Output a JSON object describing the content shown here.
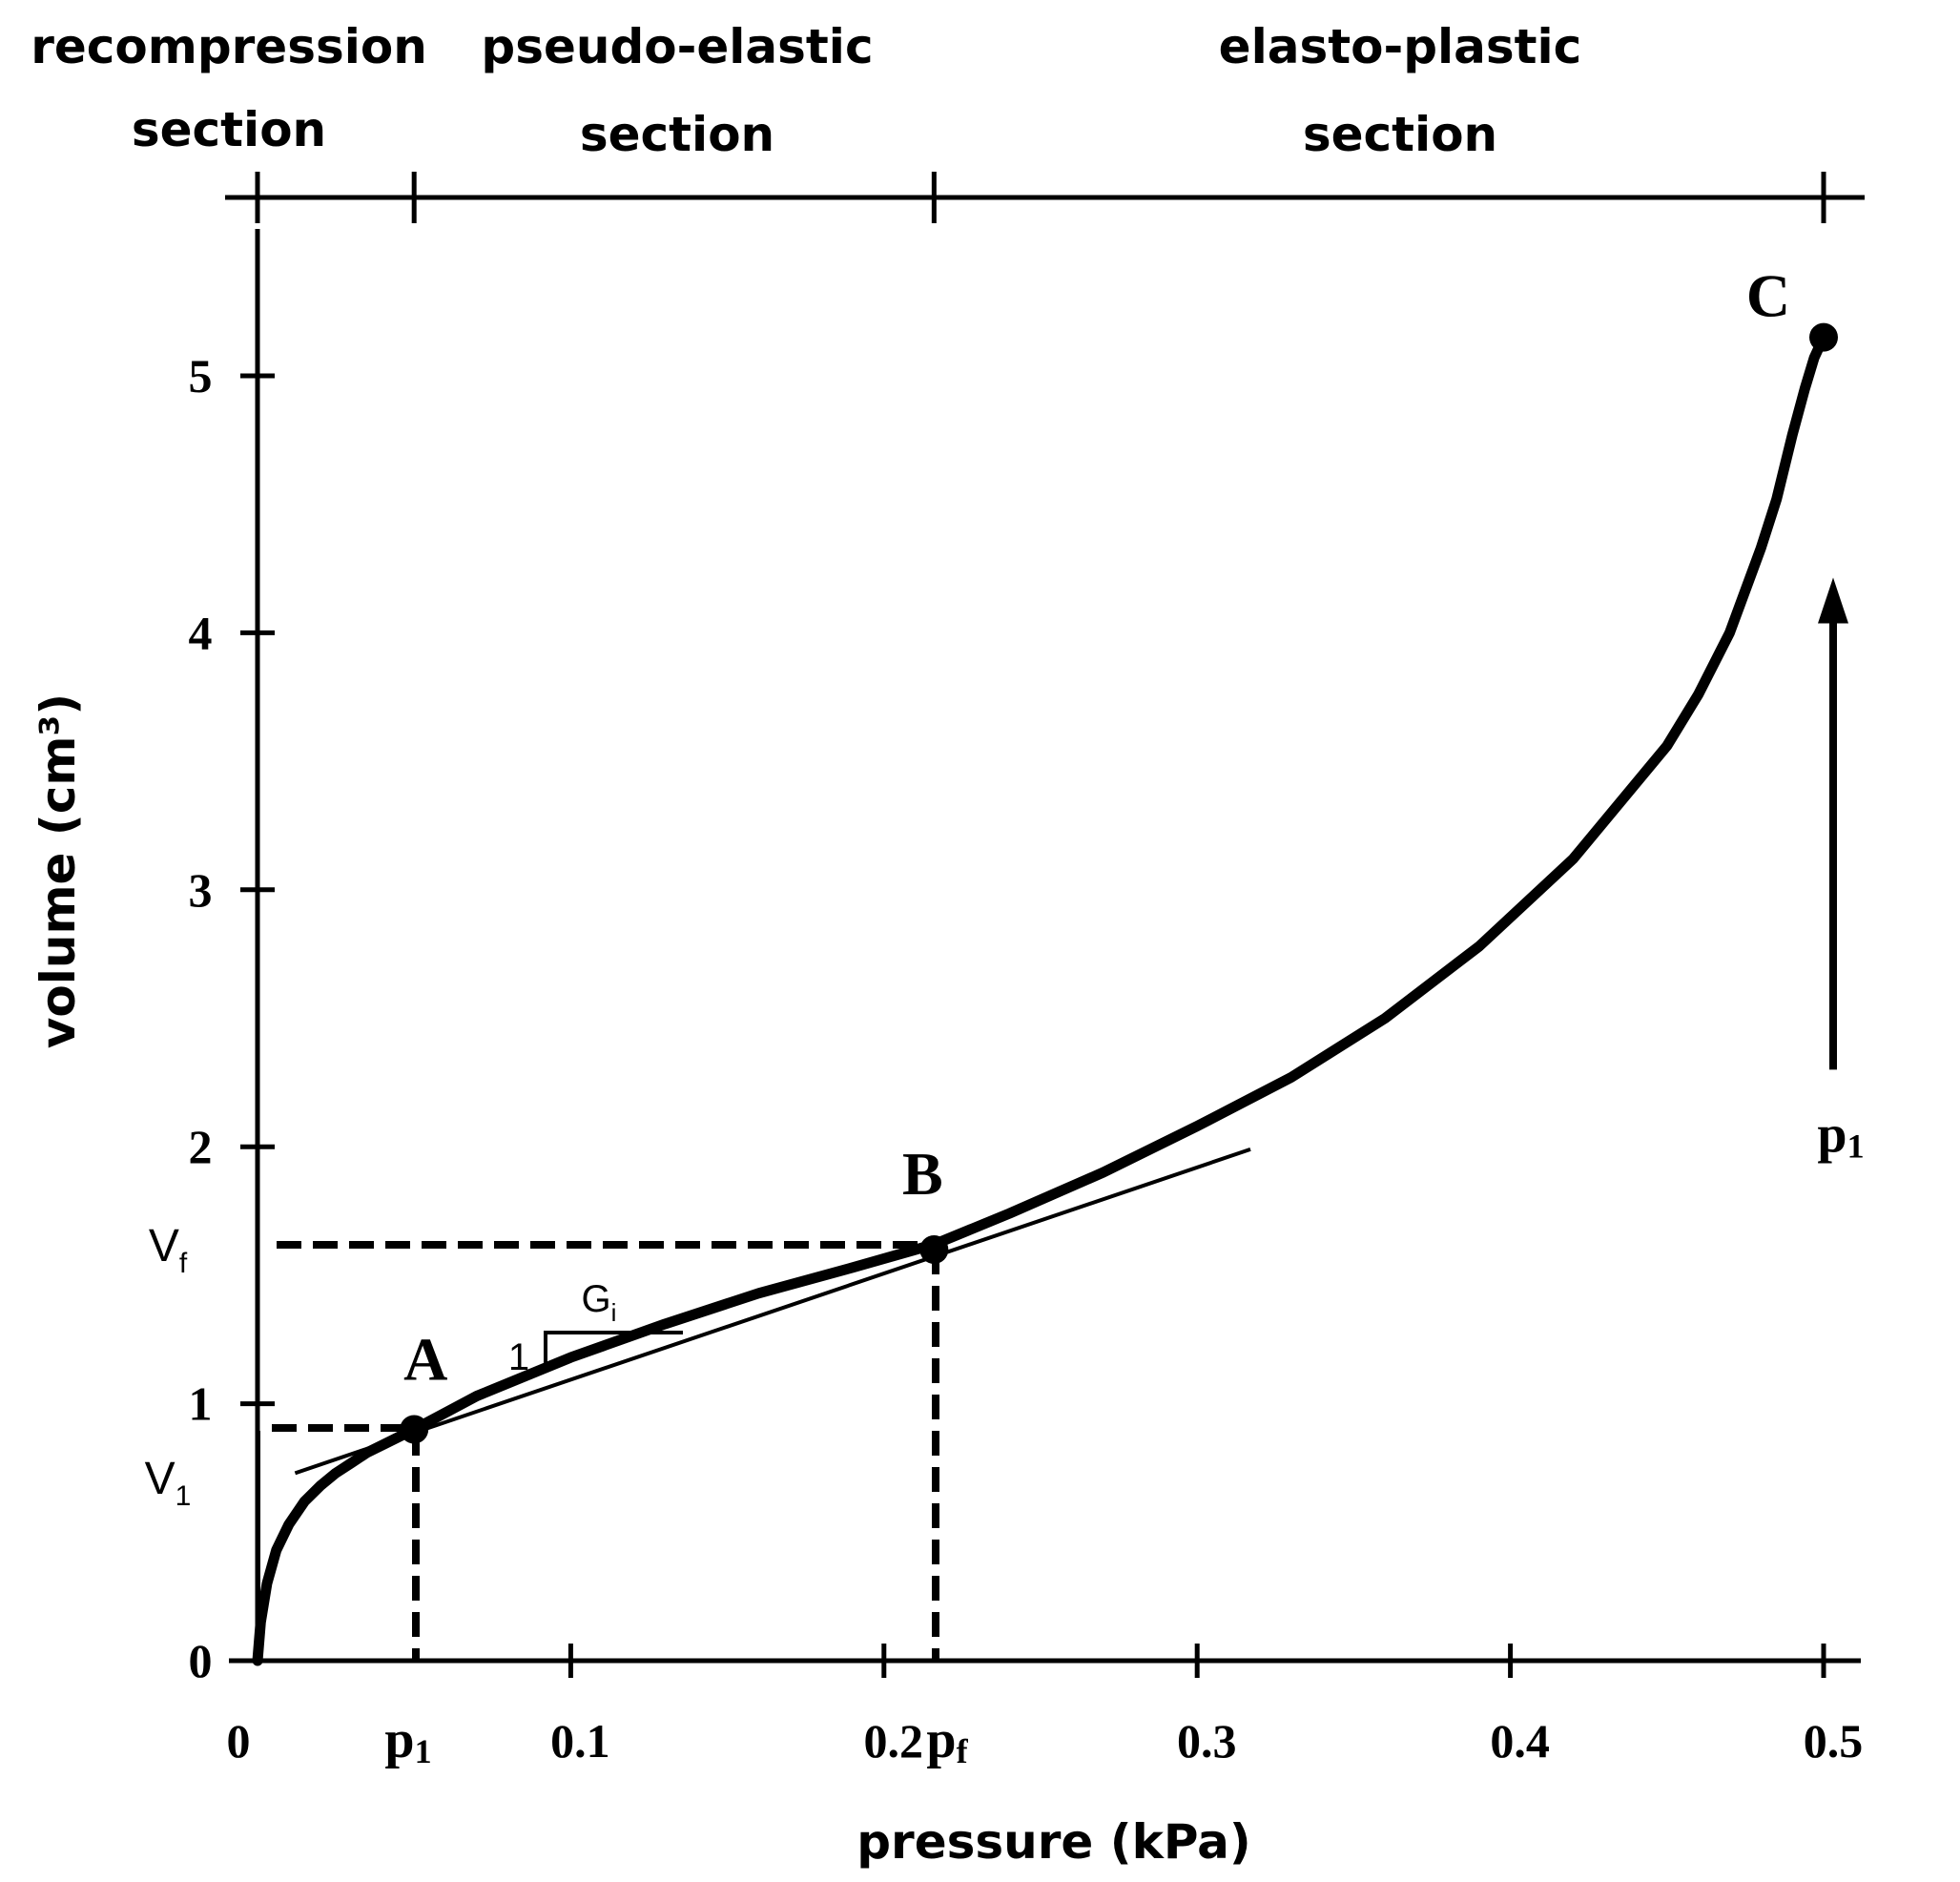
{
  "chart_data": {
    "type": "line",
    "title": "",
    "xlabel": "pressure (kPa)",
    "ylabel": "volume (cm³)",
    "xlim": [
      0,
      0.5
    ],
    "ylim": [
      0,
      5.5
    ],
    "x_ticks": [
      "0",
      "0.1",
      "0.2",
      "0.3",
      "0.4",
      "0.5"
    ],
    "x_tick_values": [
      0,
      0.1,
      0.2,
      0.3,
      0.4,
      0.5
    ],
    "y_ticks": [
      "0",
      "1",
      "2",
      "3",
      "4",
      "5"
    ],
    "y_tick_values": [
      0,
      1,
      2,
      3,
      4,
      5
    ],
    "grid": false,
    "legend": "none",
    "sections": [
      {
        "label_line1": "recompression",
        "label_line2": "section",
        "x_start": 0,
        "x_end": 0.05
      },
      {
        "label_line1": "pseudo-elastic",
        "label_line2": "section",
        "x_start": 0.05,
        "x_end": 0.216
      },
      {
        "label_line1": "elasto-plastic",
        "label_line2": "section",
        "x_start": 0.216,
        "x_end": 0.5
      }
    ],
    "series": [
      {
        "x": [
          0,
          0.001,
          0.003,
          0.006,
          0.01,
          0.015,
          0.02,
          0.025,
          0.03,
          0.035,
          0.04,
          0.045,
          0.05,
          0.07,
          0.1,
          0.13,
          0.16,
          0.19,
          0.216,
          0.24,
          0.27,
          0.3,
          0.33,
          0.36,
          0.39,
          0.42,
          0.45,
          0.46,
          0.47,
          0.48,
          0.485,
          0.49,
          0.494,
          0.497,
          0.5
        ],
        "y": [
          0,
          0.15,
          0.3,
          0.43,
          0.53,
          0.62,
          0.68,
          0.73,
          0.77,
          0.81,
          0.84,
          0.87,
          0.9,
          1.03,
          1.18,
          1.31,
          1.43,
          1.53,
          1.62,
          1.74,
          1.9,
          2.08,
          2.27,
          2.5,
          2.78,
          3.12,
          3.56,
          3.76,
          4.0,
          4.33,
          4.52,
          4.77,
          4.95,
          5.07,
          5.15
        ]
      }
    ],
    "tangent_line": {
      "x": [
        0.012,
        0.317
      ],
      "y": [
        0.73,
        1.99
      ]
    },
    "points": [
      {
        "label": "A",
        "x": 0.05,
        "y": 0.9
      },
      {
        "label": "B",
        "x": 0.216,
        "y": 1.6
      },
      {
        "label": "C",
        "x": 0.5,
        "y": 5.15
      }
    ],
    "reference_labels": {
      "p1": "p",
      "p1_sub": "1",
      "pf": "p",
      "pf_sub": "f",
      "v1": "V",
      "v1_sub": "1",
      "vf": "V",
      "vf_sub": "f"
    },
    "slope_annotation": {
      "rise": "1",
      "run": "G",
      "run_sub": "i"
    },
    "arrow": {
      "label": "p",
      "label_sub": "1",
      "x": 0.5,
      "y_from": 2.3,
      "y_to": 4.2
    }
  }
}
